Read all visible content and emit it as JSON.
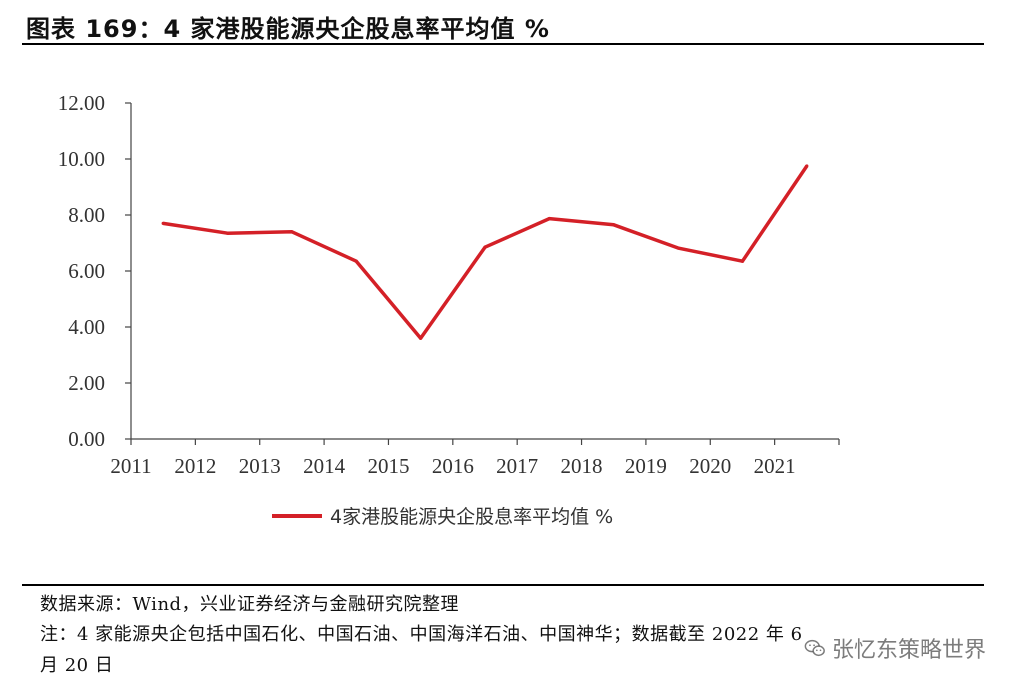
{
  "title": "图表 169：4 家港股能源央企股息率平均值 %",
  "chart_data": {
    "type": "line",
    "categories": [
      "2011",
      "2012",
      "2013",
      "2014",
      "2015",
      "2016",
      "2017",
      "2018",
      "2019",
      "2020",
      "2021"
    ],
    "series": [
      {
        "name": "4家港股能源央企股息率平均值 %",
        "values": [
          7.7,
          7.35,
          7.4,
          6.35,
          3.6,
          6.85,
          7.87,
          7.65,
          6.82,
          6.35,
          9.75
        ],
        "color": "#d42027"
      }
    ],
    "yticks": [
      "0.00",
      "2.00",
      "4.00",
      "6.00",
      "8.00",
      "10.00",
      "12.00"
    ],
    "ylim": [
      0,
      12
    ],
    "legend_position": "bottom",
    "grid": false
  },
  "footer": {
    "source": "数据来源：Wind，兴业证券经济与金融研究院整理",
    "note_line1": "注：4 家能源央企包括中国石化、中国石油、中国海洋石油、中国神华；数据截至 2022 年 6",
    "note_line2": "月 20 日"
  },
  "watermark": {
    "text": "张忆东策略世界",
    "icon": "wechat-icon"
  }
}
